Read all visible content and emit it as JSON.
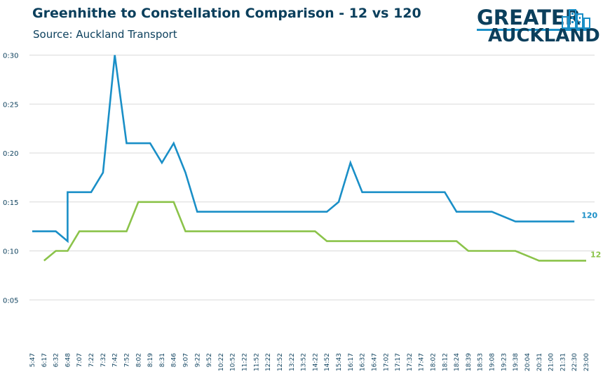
{
  "header": {
    "title": "Greenhithe to Constellation Comparison - 12 vs 120",
    "subtitle": "Source: Auckland Transport"
  },
  "logo": {
    "line1": "GREATER",
    "line2": "AUCKLAND",
    "icon": "city-skyline-icon"
  },
  "colors": {
    "series_120": "#1a8fc7",
    "series_12": "#8bc34a",
    "text": "#0b3f5c",
    "grid": "#d9d9d9"
  },
  "chart_data": {
    "type": "line",
    "title": "Greenhithe to Constellation Comparison - 12 vs 120",
    "subtitle": "Source: Auckland Transport",
    "xlabel": "",
    "ylabel": "",
    "y_unit": "minutes (m:ss)",
    "ylim": [
      0,
      30
    ],
    "yticks": [
      5,
      10,
      15,
      20,
      25,
      30
    ],
    "ytick_labels": [
      "0:05",
      "0:10",
      "0:15",
      "0:20",
      "0:25",
      "0:30"
    ],
    "grid": true,
    "categories": [
      "5:47",
      "6:17",
      "6:32",
      "6:48",
      "7:07",
      "7:22",
      "7:32",
      "7:42",
      "7:52",
      "8:02",
      "8:19",
      "8:31",
      "8:46",
      "9:07",
      "9:22",
      "9:52",
      "10:22",
      "10:52",
      "11:22",
      "11:52",
      "12:22",
      "12:52",
      "13:22",
      "13:52",
      "14:22",
      "14:52",
      "15:43",
      "16:17",
      "16:32",
      "16:47",
      "17:02",
      "17:17",
      "17:32",
      "17:47",
      "18:02",
      "18:12",
      "18:24",
      "18:39",
      "18:53",
      "19:08",
      "19:23",
      "19:38",
      "20:04",
      "20:31",
      "21:00",
      "21:31",
      "22:30",
      "23:00"
    ],
    "series": [
      {
        "name": "120",
        "label": "120",
        "points": [
          {
            "x": "5:47",
            "y": 12
          },
          {
            "x": "6:17",
            "y": 12
          },
          {
            "x": "6:32",
            "y": 12
          },
          {
            "x": "6:48",
            "y": 11
          },
          {
            "x": "6:48",
            "y": 16
          },
          {
            "x": "7:07",
            "y": 16
          },
          {
            "x": "7:22",
            "y": 16
          },
          {
            "x": "7:32",
            "y": 18
          },
          {
            "x": "7:32",
            "y": 18
          },
          {
            "x": "7:42",
            "y": 30
          },
          {
            "x": "7:52",
            "y": 21
          },
          {
            "x": "8:02",
            "y": 21
          },
          {
            "x": "8:19",
            "y": 21
          },
          {
            "x": "8:31",
            "y": 19
          },
          {
            "x": "8:46",
            "y": 21
          },
          {
            "x": "9:07",
            "y": 18
          },
          {
            "x": "9:22",
            "y": 14
          },
          {
            "x": "9:52",
            "y": 14
          },
          {
            "x": "14:52",
            "y": 14
          },
          {
            "x": "15:43",
            "y": 15
          },
          {
            "x": "16:17",
            "y": 19
          },
          {
            "x": "16:32",
            "y": 16
          },
          {
            "x": "18:12",
            "y": 16
          },
          {
            "x": "18:24",
            "y": 14
          },
          {
            "x": "19:08",
            "y": 14
          },
          {
            "x": "19:38",
            "y": 13
          },
          {
            "x": "22:30",
            "y": 13
          }
        ]
      },
      {
        "name": "12",
        "label": "12",
        "points": [
          {
            "x": "6:17",
            "y": 9
          },
          {
            "x": "6:32",
            "y": 10
          },
          {
            "x": "6:48",
            "y": 10
          },
          {
            "x": "7:07",
            "y": 12
          },
          {
            "x": "7:52",
            "y": 12
          },
          {
            "x": "8:02",
            "y": 15
          },
          {
            "x": "8:46",
            "y": 15
          },
          {
            "x": "9:07",
            "y": 12
          },
          {
            "x": "14:22",
            "y": 12
          },
          {
            "x": "14:52",
            "y": 11
          },
          {
            "x": "18:24",
            "y": 11
          },
          {
            "x": "18:39",
            "y": 10
          },
          {
            "x": "19:38",
            "y": 10
          },
          {
            "x": "20:31",
            "y": 9
          },
          {
            "x": "23:00",
            "y": 9
          }
        ]
      }
    ]
  }
}
